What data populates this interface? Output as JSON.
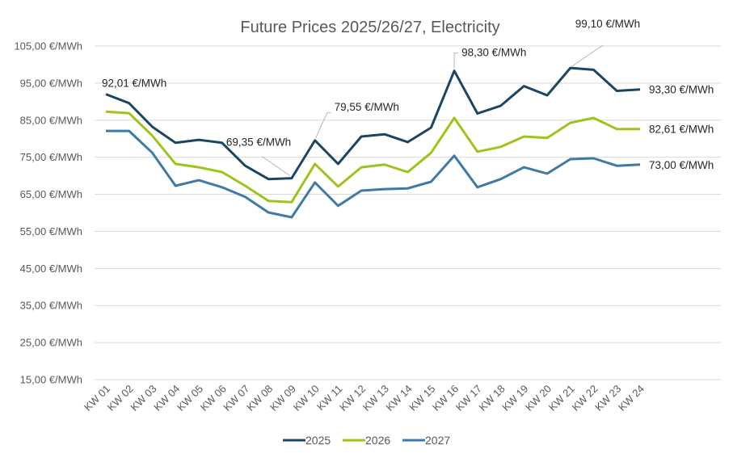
{
  "chart_data": {
    "type": "line",
    "title": "Future Prices 2025/26/27, Electricity",
    "xlabel": "",
    "ylabel": "",
    "ylim": [
      15,
      105
    ],
    "y_ticks": [
      105,
      95,
      85,
      75,
      65,
      55,
      45,
      35,
      25,
      15
    ],
    "y_tick_labels": [
      "105,00 €/MWh",
      "95,00 €/MWh",
      "85,00 €/MWh",
      "75,00 €/MWh",
      "65,00 €/MWh",
      "55,00 €/MWh",
      "45,00 €/MWh",
      "35,00 €/MWh",
      "25,00 €/MWh",
      "15,00 €/MWh"
    ],
    "grid": true,
    "legend_position": "bottom",
    "categories": [
      "KW 01",
      "KW 02",
      "KW 03",
      "KW 04",
      "KW 05",
      "KW 06",
      "KW 07",
      "KW 08",
      "KW 09",
      "KW 10",
      "KW 11",
      "KW 12",
      "KW 13",
      "KW 14",
      "KW 15",
      "KW 16",
      "KW 17",
      "KW 18",
      "KW 19",
      "KW 20",
      "KW 21",
      "KW 22",
      "KW 23",
      "KW 24"
    ],
    "series": [
      {
        "name": "2025",
        "color": "#1a4664",
        "values": [
          92.01,
          89.6,
          83.2,
          78.9,
          79.7,
          78.9,
          72.7,
          69.1,
          69.35,
          79.55,
          73.2,
          80.6,
          81.2,
          79.1,
          83.0,
          98.3,
          86.8,
          88.9,
          94.2,
          91.7,
          99.1,
          98.6,
          92.9,
          93.3
        ]
      },
      {
        "name": "2026",
        "color": "#9dc41a",
        "values": [
          87.3,
          86.9,
          80.8,
          73.2,
          72.3,
          71.0,
          67.3,
          63.2,
          62.9,
          73.2,
          67.1,
          72.3,
          73.0,
          71.0,
          76.2,
          85.6,
          76.5,
          77.8,
          80.6,
          80.2,
          84.3,
          85.6,
          82.6,
          82.61
        ]
      },
      {
        "name": "2027",
        "color": "#3f7aa6",
        "values": [
          82.1,
          82.1,
          76.2,
          67.3,
          68.8,
          66.9,
          64.3,
          60.1,
          58.8,
          68.2,
          61.9,
          66.0,
          66.4,
          66.6,
          68.4,
          75.4,
          66.9,
          69.1,
          72.3,
          70.6,
          74.5,
          74.7,
          72.7,
          73.0
        ]
      }
    ],
    "annotations": [
      {
        "series": "2025",
        "category": "KW 01",
        "text": "92,01 €/MWh"
      },
      {
        "series": "2025",
        "category": "KW 09",
        "text": "69,35 €/MWh"
      },
      {
        "series": "2025",
        "category": "KW 10",
        "text": "79,55 €/MWh"
      },
      {
        "series": "2025",
        "category": "KW 16",
        "text": "98,30 €/MWh"
      },
      {
        "series": "2025",
        "category": "KW 21",
        "text": "99,10 €/MWh"
      },
      {
        "series": "2025",
        "category": "KW 24",
        "text": "93,30 €/MWh"
      },
      {
        "series": "2026",
        "category": "KW 24",
        "text": "82,61 €/MWh"
      },
      {
        "series": "2027",
        "category": "KW 24",
        "text": "73,00 €/MWh"
      }
    ]
  }
}
